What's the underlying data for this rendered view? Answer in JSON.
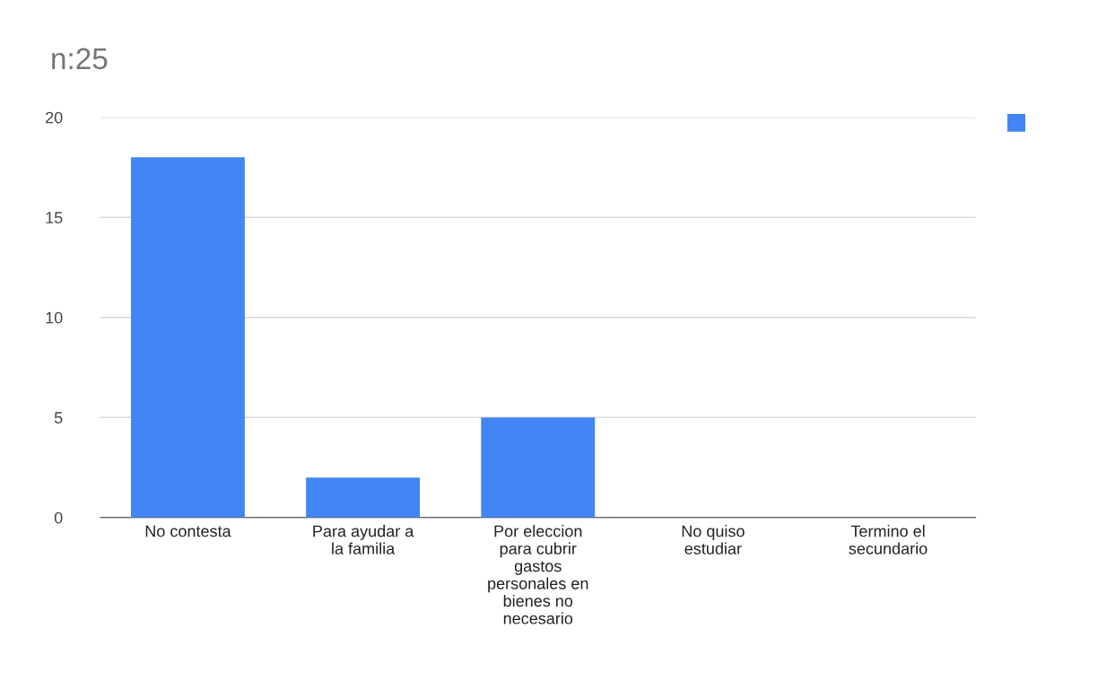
{
  "chart_data": {
    "type": "bar",
    "title": "n:25",
    "categories": [
      "No contesta",
      "Para ayudar a la familia",
      "Por eleccion para cubrir gastos personales en bienes no necesario",
      "No quiso estudiar",
      "Termino el secundario"
    ],
    "series": [
      {
        "color": "#4285f4",
        "values": [
          18,
          2,
          5,
          0,
          0
        ]
      }
    ],
    "ylim": [
      0,
      20
    ],
    "yticks": [
      0,
      5,
      10,
      15,
      20
    ],
    "grid": "y"
  }
}
